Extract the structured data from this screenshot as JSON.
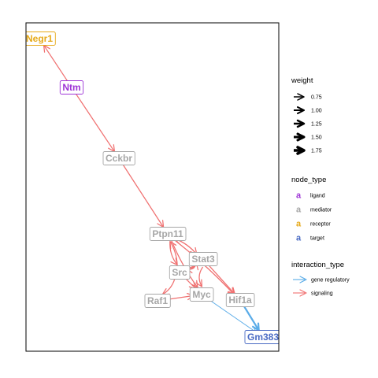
{
  "colors": {
    "ligand": "#9e35d6",
    "mediator": "#a6a6a6",
    "receptor": "#e6a919",
    "target": "#4a6bc4",
    "gene_regulatory": "#5aace8",
    "signaling": "#f07070"
  },
  "nodes": [
    {
      "id": "negr1",
      "label": "Negr1",
      "type": "receptor"
    },
    {
      "id": "ntm",
      "label": "Ntm",
      "type": "ligand"
    },
    {
      "id": "cckbr",
      "label": "Cckbr",
      "type": "mediator"
    },
    {
      "id": "ptpn11",
      "label": "Ptpn11",
      "type": "mediator"
    },
    {
      "id": "stat3",
      "label": "Stat3",
      "type": "mediator"
    },
    {
      "id": "src",
      "label": "Src",
      "type": "mediator"
    },
    {
      "id": "myc",
      "label": "Myc",
      "type": "mediator"
    },
    {
      "id": "raf1",
      "label": "Raf1",
      "type": "mediator"
    },
    {
      "id": "hif1a",
      "label": "Hif1a",
      "type": "mediator"
    },
    {
      "id": "gm383",
      "label": "Gm383",
      "type": "target"
    }
  ],
  "edges": [
    {
      "from": "ntm",
      "to": "negr1",
      "type": "signaling",
      "weight": 1.0
    },
    {
      "from": "ntm",
      "to": "cckbr",
      "type": "signaling",
      "weight": 1.0
    },
    {
      "from": "cckbr",
      "to": "ptpn11",
      "type": "signaling",
      "weight": 1.0
    },
    {
      "from": "ptpn11",
      "to": "stat3",
      "type": "signaling",
      "weight": 1.0
    },
    {
      "from": "ptpn11",
      "to": "src",
      "type": "signaling",
      "weight": 1.0
    },
    {
      "from": "ptpn11",
      "to": "myc",
      "type": "signaling",
      "weight": 1.0
    },
    {
      "from": "ptpn11",
      "to": "hif1a",
      "type": "signaling",
      "weight": 1.0
    },
    {
      "from": "stat3",
      "to": "ptpn11",
      "type": "signaling",
      "weight": 1.0
    },
    {
      "from": "stat3",
      "to": "myc",
      "type": "signaling",
      "weight": 1.0
    },
    {
      "from": "stat3",
      "to": "hif1a",
      "type": "signaling",
      "weight": 1.0
    },
    {
      "from": "stat3",
      "to": "src",
      "type": "signaling",
      "weight": 1.0
    },
    {
      "from": "src",
      "to": "ptpn11",
      "type": "signaling",
      "weight": 1.0
    },
    {
      "from": "src",
      "to": "stat3",
      "type": "signaling",
      "weight": 1.0
    },
    {
      "from": "src",
      "to": "raf1",
      "type": "signaling",
      "weight": 1.0
    },
    {
      "from": "src",
      "to": "myc",
      "type": "signaling",
      "weight": 1.0
    },
    {
      "from": "raf1",
      "to": "myc",
      "type": "signaling",
      "weight": 1.0
    },
    {
      "from": "myc",
      "to": "gm383",
      "type": "gene regulatory",
      "weight": 0.75
    },
    {
      "from": "hif1a",
      "to": "gm383",
      "type": "gene regulatory",
      "weight": 1.75
    }
  ],
  "legend": {
    "weight": {
      "title": "weight",
      "items": [
        {
          "label": "0.75",
          "value": 0.75
        },
        {
          "label": "1.00",
          "value": 1.0
        },
        {
          "label": "1.25",
          "value": 1.25
        },
        {
          "label": "1.50",
          "value": 1.5
        },
        {
          "label": "1.75",
          "value": 1.75
        }
      ]
    },
    "node_type": {
      "title": "node_type",
      "key_glyph": "a",
      "items": [
        {
          "label": "ligand",
          "type": "ligand"
        },
        {
          "label": "mediator",
          "type": "mediator"
        },
        {
          "label": "receptor",
          "type": "receptor"
        },
        {
          "label": "target",
          "type": "target"
        }
      ]
    },
    "interaction_type": {
      "title": "interaction_type",
      "items": [
        {
          "label": "gene regulatory",
          "type": "gene_regulatory"
        },
        {
          "label": "signaling",
          "type": "signaling"
        }
      ]
    }
  }
}
